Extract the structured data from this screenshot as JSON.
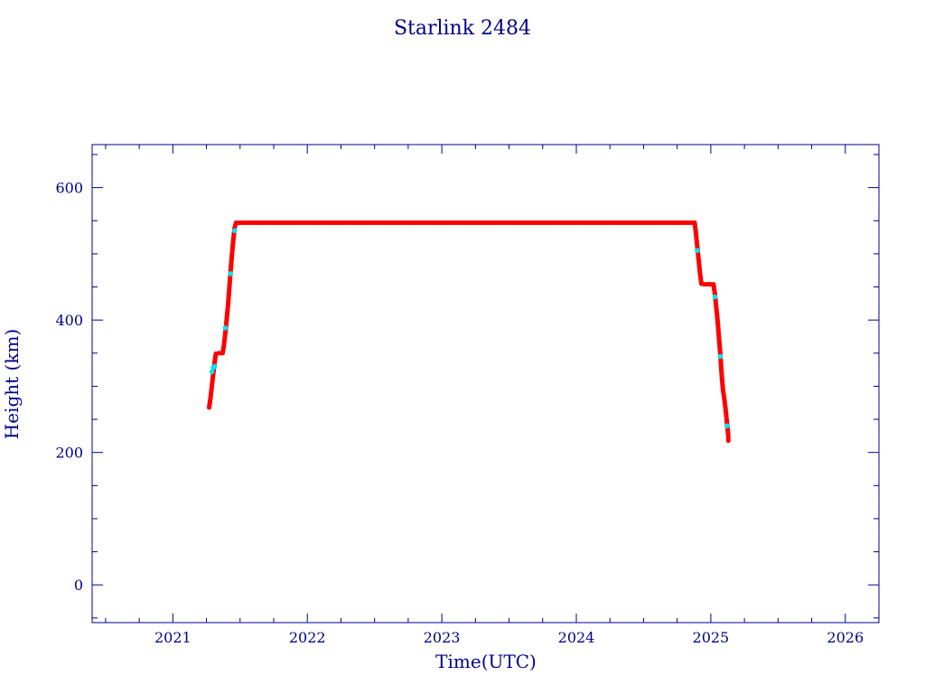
{
  "chart_data": {
    "type": "scatter",
    "title": "Starlink 2484",
    "xlabel": "Time(UTC)",
    "ylabel": "Height (km)",
    "xlim": [
      2020.4,
      2026.25
    ],
    "ylim": [
      -57,
      665
    ],
    "x_ticks": [
      2021,
      2022,
      2023,
      2024,
      2025,
      2026
    ],
    "y_ticks": [
      0,
      200,
      400,
      600
    ],
    "grid": false,
    "colors": {
      "axis": "#00008b",
      "primary": "#ff0000",
      "secondary": "#00e5ee"
    },
    "series": [
      {
        "color": "#ff0000",
        "points": [
          [
            2021.27,
            268
          ],
          [
            2021.28,
            282
          ],
          [
            2021.29,
            300
          ],
          [
            2021.3,
            318
          ],
          [
            2021.31,
            335
          ],
          [
            2021.32,
            349
          ],
          [
            2021.34,
            350
          ],
          [
            2021.36,
            350
          ],
          [
            2021.37,
            350
          ],
          [
            2021.38,
            362
          ],
          [
            2021.39,
            380
          ],
          [
            2021.4,
            400
          ],
          [
            2021.41,
            422
          ],
          [
            2021.42,
            448
          ],
          [
            2021.43,
            475
          ],
          [
            2021.44,
            500
          ],
          [
            2021.45,
            522
          ],
          [
            2021.46,
            540
          ],
          [
            2021.47,
            547
          ],
          [
            2021.6,
            547
          ],
          [
            2021.8,
            547
          ],
          [
            2022.0,
            547
          ],
          [
            2022.2,
            547
          ],
          [
            2022.4,
            547
          ],
          [
            2022.6,
            547
          ],
          [
            2022.8,
            547
          ],
          [
            2023.0,
            547
          ],
          [
            2023.2,
            547
          ],
          [
            2023.4,
            547
          ],
          [
            2023.6,
            547
          ],
          [
            2023.8,
            547
          ],
          [
            2024.0,
            547
          ],
          [
            2024.2,
            547
          ],
          [
            2024.4,
            547
          ],
          [
            2024.6,
            547
          ],
          [
            2024.8,
            547
          ],
          [
            2024.88,
            547
          ],
          [
            2024.89,
            530
          ],
          [
            2024.9,
            510
          ],
          [
            2024.91,
            490
          ],
          [
            2024.92,
            470
          ],
          [
            2024.93,
            455
          ],
          [
            2024.95,
            454
          ],
          [
            2024.97,
            454
          ],
          [
            2025.0,
            454
          ],
          [
            2025.02,
            454
          ],
          [
            2025.03,
            440
          ],
          [
            2025.04,
            420
          ],
          [
            2025.05,
            400
          ],
          [
            2025.06,
            375
          ],
          [
            2025.07,
            350
          ],
          [
            2025.08,
            320
          ],
          [
            2025.09,
            295
          ],
          [
            2025.1,
            282
          ],
          [
            2025.11,
            265
          ],
          [
            2025.12,
            245
          ],
          [
            2025.13,
            225
          ],
          [
            2025.13,
            218
          ]
        ]
      },
      {
        "color": "#00e5ee",
        "points": [
          [
            2021.29,
            322
          ],
          [
            2021.3,
            328
          ],
          [
            2021.31,
            330
          ],
          [
            2021.39,
            388
          ],
          [
            2021.43,
            470
          ],
          [
            2021.46,
            535
          ],
          [
            2024.9,
            505
          ],
          [
            2025.03,
            435
          ],
          [
            2025.07,
            345
          ],
          [
            2025.12,
            240
          ]
        ]
      }
    ]
  }
}
